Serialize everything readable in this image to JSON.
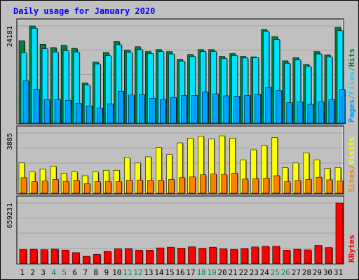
{
  "chart_data": {
    "type": "bar",
    "title": "Daily usage for January 2020",
    "categories": [
      "1",
      "2",
      "3",
      "4",
      "5",
      "6",
      "7",
      "8",
      "9",
      "10",
      "11",
      "12",
      "13",
      "14",
      "15",
      "16",
      "17",
      "18",
      "19",
      "20",
      "21",
      "22",
      "23",
      "24",
      "25",
      "26",
      "27",
      "28",
      "29",
      "30",
      "31"
    ],
    "weekend_days": [
      "4",
      "5",
      "11",
      "12",
      "18",
      "19",
      "25",
      "26"
    ],
    "colors": {
      "background": "#c0c0c0",
      "title": "#0000ff",
      "hits": "#008040",
      "files": "#00e0ff",
      "pages": "#00a0ff",
      "visits": "#ff8000",
      "sites": "#ffff00",
      "kbytes": "#ff0000",
      "weekday_label": "#000000",
      "weekend_label": "#00805c"
    },
    "panels": [
      {
        "name": "hits-files-pages",
        "y_max": 24181,
        "y_tick_label": "24181",
        "legend": [
          "Pages",
          "/",
          "Files",
          "/",
          "Hits"
        ],
        "series": [
          {
            "name": "Hits",
            "values": [
              20500,
              24181,
              19600,
              18800,
              19400,
              18600,
              10000,
              15200,
              17600,
              20300,
              18200,
              19000,
              17800,
              18300,
              17800,
              15900,
              17100,
              18300,
              18300,
              16600,
              17300,
              16600,
              16500,
              23300,
              21500,
              15500,
              16300,
              14600,
              17800,
              17000,
              23800
            ]
          },
          {
            "name": "Files",
            "values": [
              17500,
              23600,
              18500,
              17700,
              18000,
              17700,
              9500,
              14700,
              16800,
              19500,
              17600,
              18300,
              17300,
              17800,
              17200,
              15400,
              16600,
              17800,
              17800,
              16100,
              16800,
              16200,
              16300,
              22800,
              20800,
              14900,
              15700,
              14100,
              17200,
              16500,
              23000
            ]
          },
          {
            "name": "Pages",
            "values": [
              10500,
              8400,
              5800,
              5900,
              5700,
              5000,
              4300,
              3800,
              4800,
              7900,
              7000,
              7200,
              6200,
              5900,
              6400,
              6900,
              6900,
              7800,
              7300,
              6800,
              6700,
              6900,
              7200,
              9000,
              8100,
              5100,
              5300,
              4700,
              5300,
              5800,
              8400
            ]
          }
        ]
      },
      {
        "name": "visits-sites",
        "y_max": 3885,
        "y_tick_label": "3885",
        "legend": [
          "Sites",
          "/",
          "Visits"
        ],
        "series": [
          {
            "name": "Sites",
            "values": [
              1950,
              1370,
              1550,
              1750,
              1290,
              1380,
              1130,
              1370,
              1480,
              1480,
              2300,
              1950,
              2350,
              2950,
              2500,
              3250,
              3550,
              3680,
              3500,
              3700,
              3550,
              2150,
              2800,
              3080,
              3580,
              1650,
              1950,
              2600,
              2150,
              1600,
              1650
            ]
          },
          {
            "name": "Visits",
            "values": [
              1000,
              750,
              790,
              890,
              760,
              830,
              620,
              750,
              760,
              750,
              830,
              850,
              830,
              830,
              890,
              1000,
              1050,
              1190,
              1250,
              1220,
              1300,
              910,
              930,
              970,
              1130,
              740,
              820,
              890,
              1030,
              860,
              800
            ]
          }
        ]
      },
      {
        "name": "kbytes",
        "y_max": 659231,
        "y_tick_label": "659231",
        "legend": [
          "KBytes"
        ],
        "series": [
          {
            "name": "KBytes",
            "values": [
              150000,
              152000,
              148000,
              154000,
              144000,
              116000,
              76000,
              97000,
              130000,
              157000,
              159000,
              143000,
              143000,
              168000,
              175000,
              165000,
              180000,
              163000,
              175000,
              157000,
              150000,
              160000,
              178000,
              185000,
              186000,
              143000,
              152000,
              146000,
              195000,
              171000,
              659231
            ]
          }
        ]
      }
    ]
  }
}
